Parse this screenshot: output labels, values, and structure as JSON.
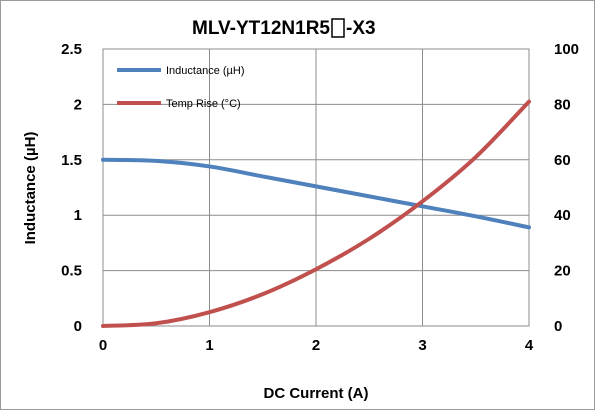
{
  "chart_data": {
    "type": "line",
    "title": "MLV-YT12N1R5",
    "title_suffix": "-X3",
    "xlabel": "DC Current (A)",
    "ylabel": "Inductance (µH)",
    "y2label": "",
    "xlim": [
      0,
      4
    ],
    "ylim": [
      0,
      2.5
    ],
    "y2lim": [
      0,
      100
    ],
    "x_ticks": [
      "0",
      "1",
      "2",
      "3",
      "4"
    ],
    "y_ticks": [
      "0",
      "0.5",
      "1",
      "1.5",
      "2",
      "2.5"
    ],
    "y2_ticks": [
      "0",
      "20",
      "40",
      "60",
      "80",
      "100"
    ],
    "grid": true,
    "legend_position": "top-left",
    "series": [
      {
        "name": "Inductance (µH)",
        "axis": "left",
        "color": "#4f81bd",
        "x": [
          0,
          0.5,
          1,
          1.5,
          2,
          2.5,
          3,
          3.5,
          4
        ],
        "y": [
          1.5,
          1.49,
          1.44,
          1.35,
          1.26,
          1.17,
          1.08,
          0.99,
          0.89
        ]
      },
      {
        "name": "Temp Rise (°C)",
        "axis": "right",
        "color": "#c0504d",
        "x": [
          0,
          0.5,
          1,
          1.5,
          2,
          2.5,
          3,
          3.5,
          4
        ],
        "y": [
          0,
          1,
          5,
          11.5,
          20.5,
          31.5,
          45,
          61,
          81
        ]
      }
    ]
  }
}
